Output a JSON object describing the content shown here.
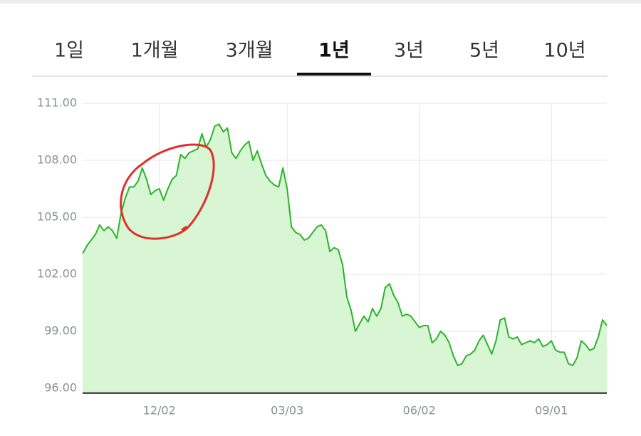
{
  "tabs": [
    "1일",
    "1개월",
    "3개월",
    "1년",
    "3년",
    "5년",
    "10년"
  ],
  "selected_tab": 3,
  "chart_data": {
    "type": "area",
    "categories": [
      null,
      null,
      null,
      null,
      null,
      null,
      null,
      null,
      null,
      null,
      null,
      null,
      null,
      null,
      null,
      null,
      null,
      null,
      "12/02",
      null,
      null,
      null,
      null,
      null,
      null,
      null,
      null,
      null,
      null,
      null,
      null,
      null,
      null,
      null,
      null,
      null,
      null,
      null,
      null,
      null,
      null,
      null,
      null,
      null,
      null,
      null,
      null,
      null,
      "03/03",
      null,
      null,
      null,
      null,
      null,
      null,
      null,
      null,
      null,
      null,
      null,
      null,
      null,
      null,
      null,
      null,
      null,
      null,
      null,
      null,
      null,
      null,
      null,
      null,
      null,
      null,
      null,
      null,
      null,
      null,
      "06/02",
      null,
      null,
      null,
      null,
      null,
      null,
      null,
      null,
      null,
      null,
      null,
      null,
      null,
      null,
      null,
      null,
      null,
      null,
      null,
      null,
      null,
      null,
      null,
      null,
      null,
      null,
      null,
      null,
      null,
      null,
      "09/01",
      null,
      null,
      null,
      null,
      null,
      null,
      null,
      null,
      null,
      null,
      null,
      null,
      null
    ],
    "values": [
      103.1,
      103.5,
      103.8,
      104.1,
      104.6,
      104.3,
      104.5,
      104.3,
      103.9,
      105.2,
      106.0,
      106.6,
      106.6,
      106.9,
      107.6,
      107.0,
      106.2,
      106.4,
      106.5,
      105.9,
      106.5,
      107.0,
      107.2,
      108.3,
      108.1,
      108.4,
      108.5,
      108.6,
      109.4,
      108.7,
      109.1,
      109.8,
      109.9,
      109.5,
      109.7,
      108.4,
      108.1,
      108.5,
      108.8,
      109.0,
      108.0,
      108.5,
      107.8,
      107.2,
      106.9,
      106.7,
      106.6,
      107.6,
      106.5,
      104.5,
      104.2,
      104.1,
      103.8,
      103.9,
      104.2,
      104.5,
      104.6,
      104.3,
      103.2,
      103.4,
      103.3,
      102.5,
      100.8,
      100.1,
      99.0,
      99.4,
      99.8,
      99.5,
      100.2,
      99.8,
      100.2,
      101.3,
      101.5,
      100.9,
      100.5,
      99.8,
      99.9,
      99.8,
      99.5,
      99.2,
      99.3,
      99.3,
      98.4,
      98.6,
      99.0,
      98.8,
      98.4,
      97.7,
      97.2,
      97.3,
      97.7,
      97.8,
      98.0,
      98.5,
      98.8,
      98.3,
      97.8,
      98.5,
      99.6,
      99.7,
      98.7,
      98.6,
      98.7,
      98.3,
      98.4,
      98.5,
      98.4,
      98.6,
      98.2,
      98.3,
      98.5,
      98.0,
      97.9,
      97.9,
      97.3,
      97.2,
      97.6,
      98.5,
      98.3,
      98.0,
      98.1,
      98.7,
      99.6,
      99.3
    ],
    "color": "#2ab52a",
    "fill_color": "#d8f5d4",
    "ylim": [
      95.75,
      111.5
    ],
    "yticks": [
      {
        "value": 96,
        "label": "96.00"
      },
      {
        "value": 99,
        "label": "99.00"
      },
      {
        "value": 102,
        "label": "102.00"
      },
      {
        "value": 105,
        "label": "105.00"
      },
      {
        "value": 108,
        "label": "108.00"
      },
      {
        "value": 111,
        "label": "111.00"
      }
    ],
    "grid": true
  }
}
